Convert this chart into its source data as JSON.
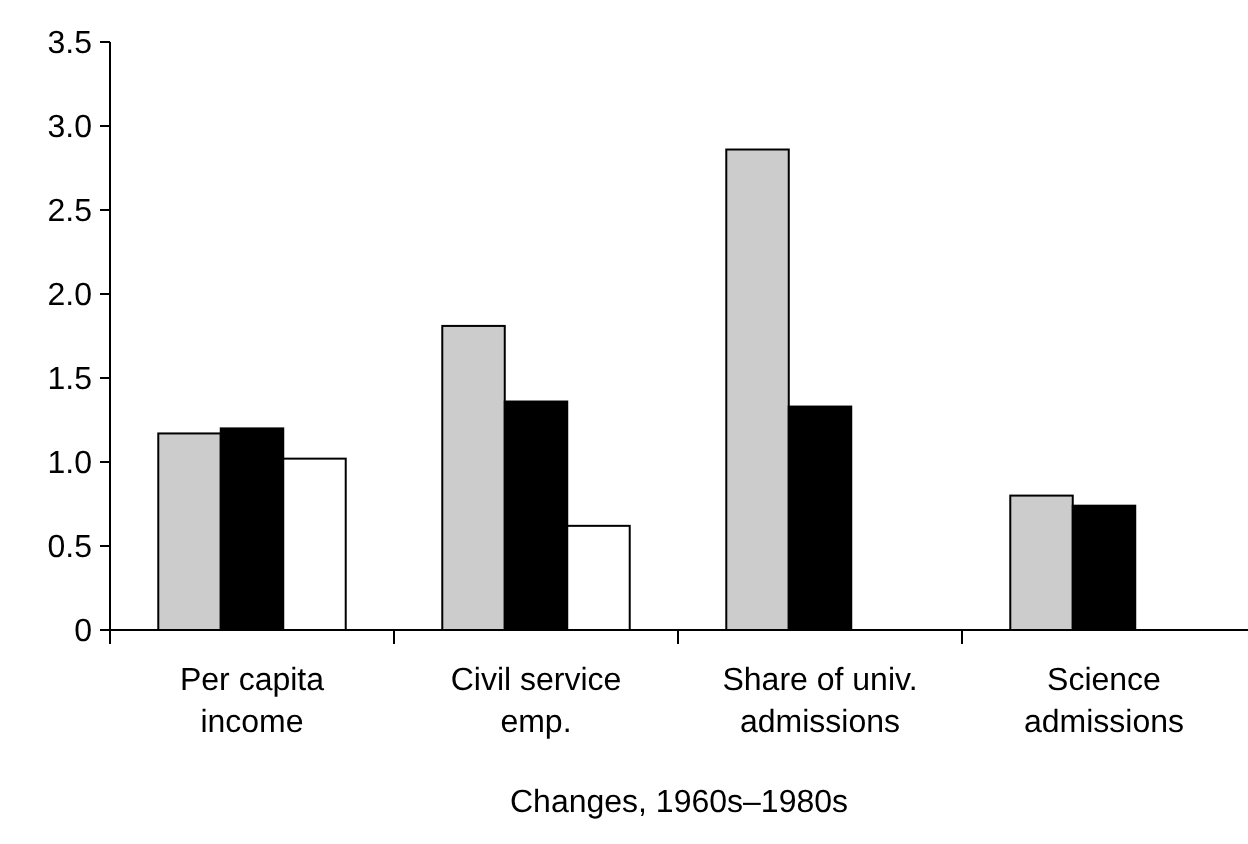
{
  "chart_data": {
    "type": "bar",
    "xlabel": "Changes, 1960s–1980s",
    "categories": [
      "Per capita\nincome",
      "Civil service\nemp.",
      "Share of univ.\nadmissions",
      "Science\nadmissions"
    ],
    "series": [
      {
        "color": "#cccccc",
        "values": [
          1.17,
          1.81,
          2.86,
          0.8
        ]
      },
      {
        "color": "#000000",
        "values": [
          1.2,
          1.36,
          1.33,
          0.74
        ]
      },
      {
        "color": "#ffffff",
        "values": [
          1.02,
          0.62,
          null,
          null
        ]
      }
    ],
    "ylim": [
      0,
      3.5
    ],
    "yticks": [
      0,
      0.5,
      {
        "value": 1,
        "label": "1.0"
      },
      1.5,
      {
        "value": 2,
        "label": "2.0"
      },
      2.5,
      {
        "value": 3,
        "label": "3.0"
      },
      3.5
    ],
    "grid": false
  }
}
